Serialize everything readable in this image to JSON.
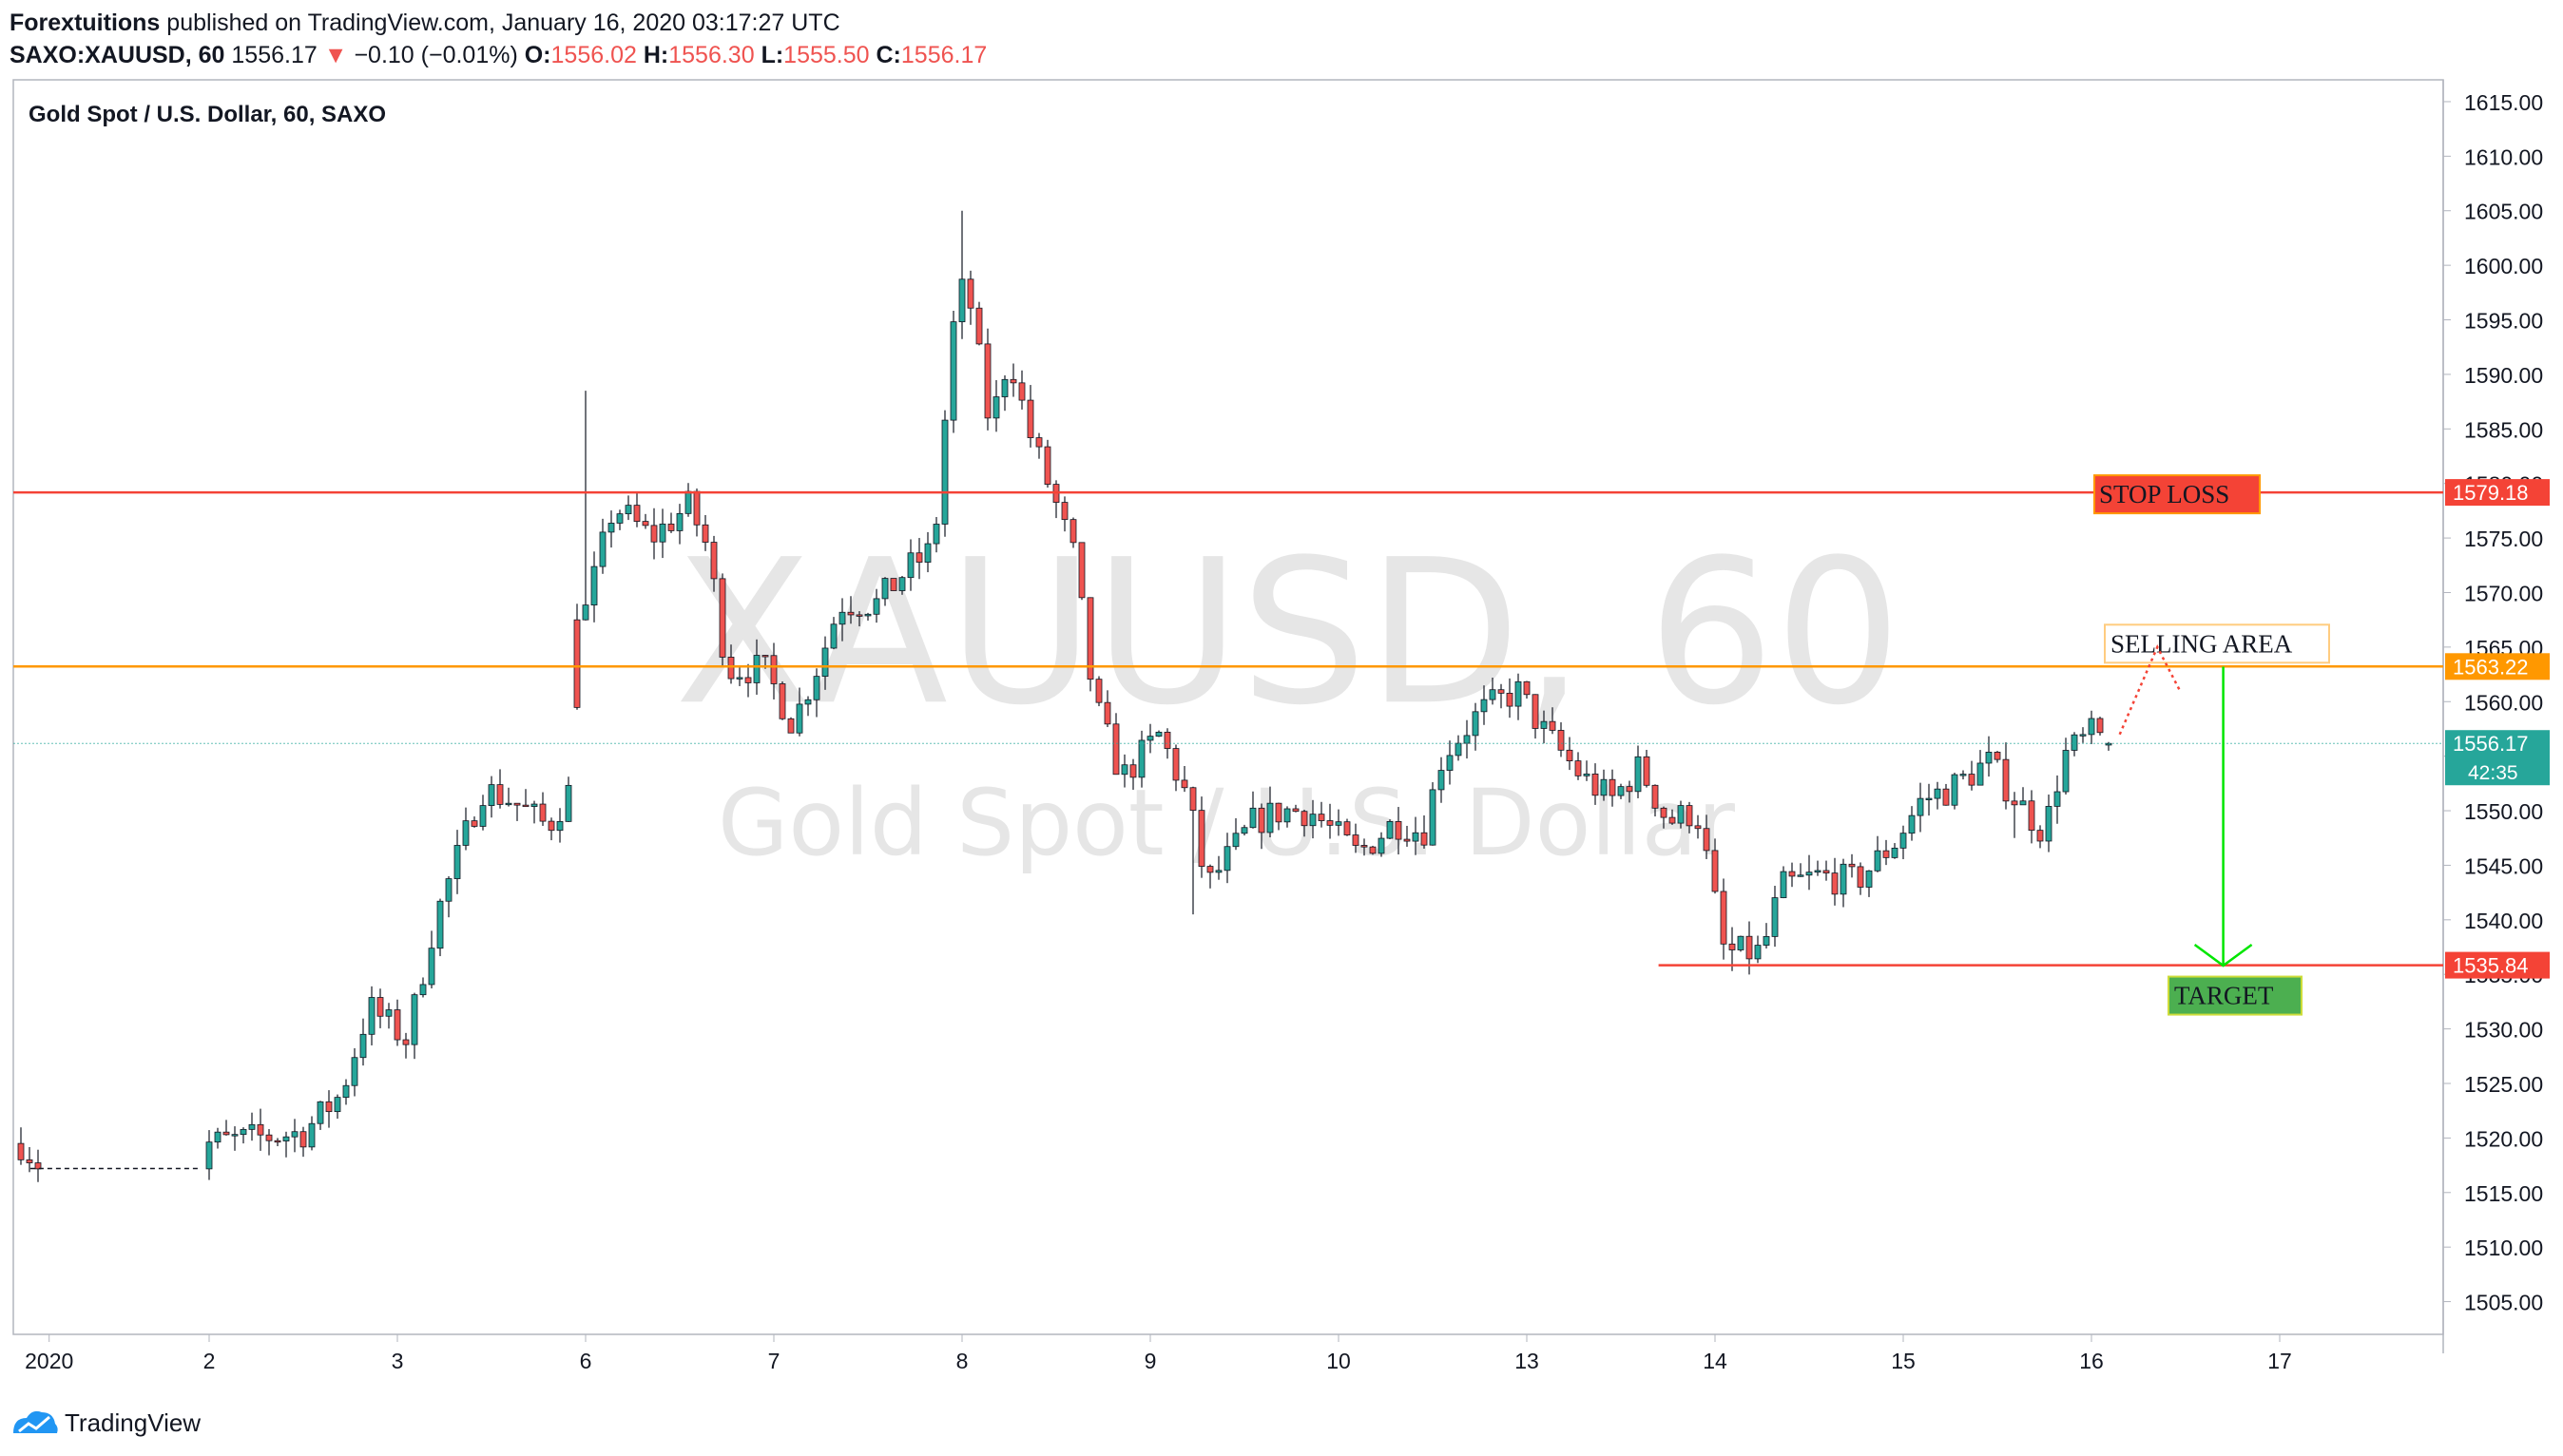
{
  "header": {
    "author": "Forextuitions",
    "published_text": "published on TradingView.com, January 16, 2020 03:17:27 UTC",
    "symbol": "SAXO:XAUUSD, 60",
    "last": "1556.17",
    "change_arrow": "▼",
    "change": "−0.10 (−0.01%)",
    "open_label": "O:",
    "open": "1556.02",
    "high_label": "H:",
    "high": "1556.30",
    "low_label": "L:",
    "low": "1555.50",
    "close_label": "C:",
    "close": "1556.17"
  },
  "footer": {
    "brand": "TradingView",
    "logo_icon": "tradingview-logo-icon"
  },
  "colors": {
    "up": "#26a69a",
    "down": "#ef5350",
    "candle_border": "#131722",
    "stop": "#f44336",
    "selling": "#ff9800",
    "target": "#4caf50",
    "green_arrow": "#00e600",
    "watermark": "#e6e6e6",
    "grid_border": "#b2b5be",
    "text": "#131722"
  },
  "chart_data": {
    "type": "candlestick",
    "title": "Gold Spot / U.S. Dollar, 60, SAXO",
    "watermark_symbol": "XAUUSD, 60",
    "watermark_name": "Gold Spot / U.S. Dollar",
    "ylim": [
      1502,
      1617
    ],
    "y_ticks": [
      1505,
      1510,
      1515,
      1520,
      1525,
      1530,
      1535,
      1540,
      1545,
      1550,
      1555,
      1560,
      1565,
      1570,
      1575,
      1580,
      1585,
      1590,
      1595,
      1600,
      1605,
      1610,
      1615
    ],
    "x_ticks": [
      {
        "label": "2020",
        "x": 0.15
      },
      {
        "label": "2",
        "x": 1.0
      },
      {
        "label": "3",
        "x": 2.0
      },
      {
        "label": "6",
        "x": 3.0
      },
      {
        "label": "7",
        "x": 4.0
      },
      {
        "label": "8",
        "x": 5.0
      },
      {
        "label": "9",
        "x": 6.0
      },
      {
        "label": "10",
        "x": 7.0
      },
      {
        "label": "13",
        "x": 8.0
      },
      {
        "label": "14",
        "x": 9.0
      },
      {
        "label": "15",
        "x": 10.0
      },
      {
        "label": "16",
        "x": 11.0
      },
      {
        "label": "17",
        "x": 12.0
      }
    ],
    "prev_close_line": {
      "value": 1517.2,
      "x_start": 0.05,
      "x_end": 0.95
    },
    "levels": [
      {
        "label": "STOP LOSS",
        "value": 1579.18,
        "price_text": "1579.18",
        "kind": "stop"
      },
      {
        "label": "SELLING AREA",
        "value": 1563.22,
        "price_text": "1563.22",
        "kind": "selling"
      },
      {
        "label": "TARGET",
        "value": 1535.84,
        "price_text": "1535.84",
        "kind": "target"
      }
    ],
    "last_price": {
      "value": 1556.17,
      "price_text": "1556.17",
      "countdown": "42:35"
    },
    "projection": [
      [
        11.15,
        1557
      ],
      [
        11.35,
        1565
      ],
      [
        11.47,
        1561
      ]
    ],
    "target_arrow": {
      "x": 11.7,
      "from": 1563.2,
      "to": 1535.8
    },
    "key_points": [
      [
        0.0,
        1519.5
      ],
      [
        0.1,
        1517.5
      ],
      [
        0.95,
        1517.6
      ],
      [
        1.0,
        1519.5
      ],
      [
        1.5,
        1520.5
      ],
      [
        1.7,
        1524
      ],
      [
        1.85,
        1532
      ],
      [
        2.05,
        1529
      ],
      [
        2.2,
        1540
      ],
      [
        2.45,
        1552
      ],
      [
        2.6,
        1551
      ],
      [
        2.8,
        1548.5
      ],
      [
        2.92,
        1552
      ],
      [
        2.98,
        1567
      ],
      [
        3.15,
        1578
      ],
      [
        3.35,
        1575
      ],
      [
        3.55,
        1578
      ],
      [
        3.65,
        1574
      ],
      [
        3.75,
        1563
      ],
      [
        3.95,
        1563
      ],
      [
        4.1,
        1558
      ],
      [
        4.25,
        1564
      ],
      [
        4.35,
        1569
      ],
      [
        4.55,
        1569
      ],
      [
        4.7,
        1572
      ],
      [
        4.85,
        1574
      ],
      [
        4.95,
        1594
      ],
      [
        5.02,
        1599
      ],
      [
        5.15,
        1585
      ],
      [
        5.25,
        1592
      ],
      [
        5.35,
        1585
      ],
      [
        5.5,
        1578
      ],
      [
        5.6,
        1573
      ],
      [
        5.7,
        1560
      ],
      [
        5.85,
        1553
      ],
      [
        6.05,
        1557
      ],
      [
        6.2,
        1551
      ],
      [
        6.3,
        1543
      ],
      [
        6.55,
        1549
      ],
      [
        6.7,
        1550
      ],
      [
        6.85,
        1550
      ],
      [
        7.1,
        1546
      ],
      [
        7.3,
        1549
      ],
      [
        7.45,
        1548
      ],
      [
        7.55,
        1555
      ],
      [
        7.75,
        1559
      ],
      [
        7.95,
        1561
      ],
      [
        8.1,
        1557
      ],
      [
        8.3,
        1553
      ],
      [
        8.45,
        1551
      ],
      [
        8.6,
        1554
      ],
      [
        8.75,
        1549
      ],
      [
        8.9,
        1550
      ],
      [
        8.95,
        1546
      ],
      [
        9.05,
        1537
      ],
      [
        9.25,
        1537
      ],
      [
        9.35,
        1543
      ],
      [
        9.55,
        1544
      ],
      [
        9.75,
        1543.5
      ],
      [
        9.95,
        1547
      ],
      [
        10.1,
        1551
      ],
      [
        10.25,
        1552
      ],
      [
        10.45,
        1554.5
      ],
      [
        10.6,
        1551
      ],
      [
        10.75,
        1548
      ],
      [
        10.85,
        1555
      ],
      [
        11.0,
        1557
      ],
      [
        11.12,
        1556.17
      ]
    ]
  }
}
